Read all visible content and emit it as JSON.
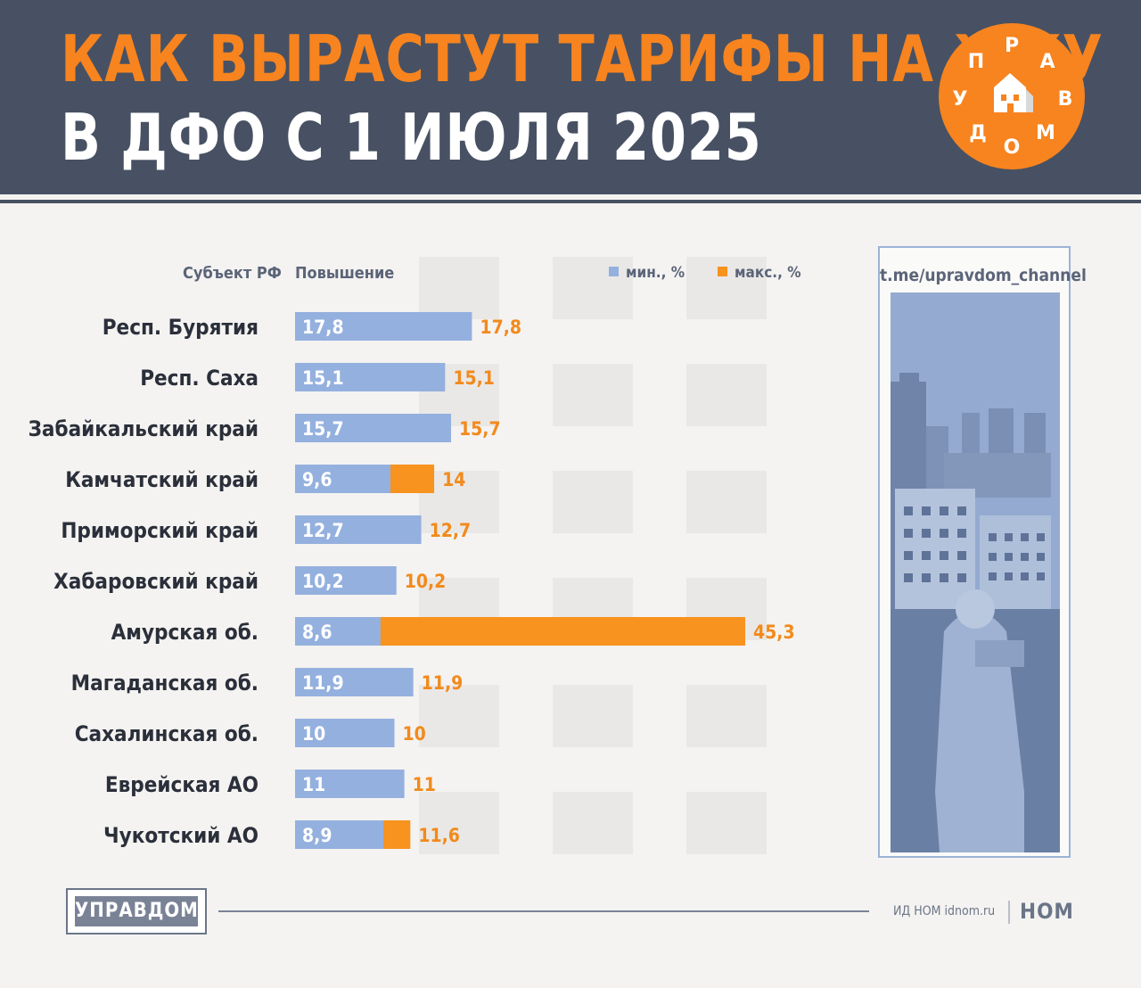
{
  "header": {
    "title_line1": "КАК ВЫРАСТУТ ТАРИФЫ НА ЖКУ",
    "title_line2": "В ДФО С 1 ИЮЛЯ 2025"
  },
  "logo": {
    "text": "УПРАВДОМ",
    "color": "#f7841f"
  },
  "columns": {
    "subject": "Субъект РФ",
    "increase": "Повышение"
  },
  "legend": {
    "min_label": "мин., %",
    "max_label": "макс., %"
  },
  "colors": {
    "min": "#94b0de",
    "max": "#f7931e",
    "max_label": "#f28a1c",
    "header_bg": "#475163"
  },
  "side_panel": {
    "link": "t.me/upravdom_channel"
  },
  "footer": {
    "brand_box": "УПРАВДОМ",
    "publisher": "ИД НОМ idnom.ru",
    "publisher_logo": "НОМ"
  },
  "chart_data": {
    "type": "bar",
    "orientation": "horizontal",
    "stacked": "overlay",
    "categories": [
      "Респ. Бурятия",
      "Респ. Саха",
      "Забайкальский край",
      "Камчатский край",
      "Приморский край",
      "Хабаровский край",
      "Амурская об.",
      "Магаданская об.",
      "Сахалинская об.",
      "Еврейская АО",
      "Чукотский АО"
    ],
    "series": [
      {
        "name": "мин., %",
        "values": [
          17.8,
          15.1,
          15.7,
          9.6,
          12.7,
          10.2,
          8.6,
          11.9,
          10,
          11,
          8.9
        ],
        "labels": [
          "17,8",
          "15,1",
          "15,7",
          "9,6",
          "12,7",
          "10,2",
          "8,6",
          "11,9",
          "10",
          "11",
          "8,9"
        ]
      },
      {
        "name": "макс., %",
        "values": [
          17.8,
          15.1,
          15.7,
          14,
          12.7,
          10.2,
          45.3,
          11.9,
          10,
          11,
          11.6
        ],
        "labels": [
          "17,8",
          "15,1",
          "15,7",
          "14",
          "12,7",
          "10,2",
          "45,3",
          "11,9",
          "10",
          "11",
          "11,6"
        ]
      }
    ],
    "xlim": [
      0,
      45.3
    ],
    "legend_position": "top-right",
    "grid": false
  }
}
